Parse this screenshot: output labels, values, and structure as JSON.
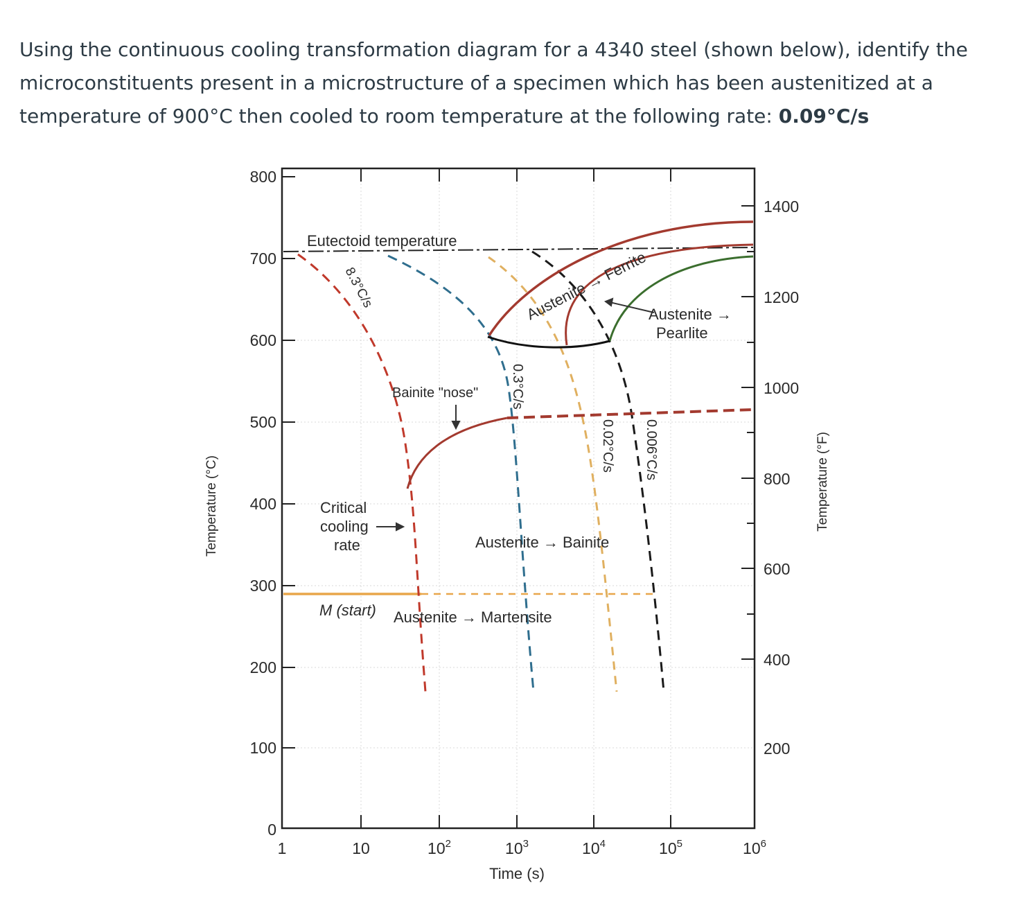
{
  "question": {
    "line1": "Using the continuous cooling transformation diagram for a 4340 steel (shown below), identify the",
    "line2": "microconstituents present in a microstructure of a specimen which has been austenitized at a",
    "line3_prefix": "temperature of 900°C then cooled to room temperature at the following rate: ",
    "rate": "0.09°C/s"
  },
  "diagram": {
    "y_left_title": "Temperature (°C)",
    "y_right_title": "Temperature (°F)",
    "x_title": "Time (s)",
    "y_left_ticks": [
      "0",
      "100",
      "200",
      "300",
      "400",
      "500",
      "600",
      "700",
      "800"
    ],
    "y_right_ticks": [
      "200",
      "400",
      "600",
      "800",
      "1000",
      "1200",
      "1400"
    ],
    "x_ticks": [
      {
        "base": "1",
        "exp": ""
      },
      {
        "base": "10",
        "exp": ""
      },
      {
        "base": "10",
        "exp": "2"
      },
      {
        "base": "10",
        "exp": "3"
      },
      {
        "base": "10",
        "exp": "4"
      },
      {
        "base": "10",
        "exp": "5"
      },
      {
        "base": "10",
        "exp": "6"
      }
    ],
    "labels": {
      "eutectoid": "Eutectoid temperature",
      "ferrite_line": "Austenite → Ferrite",
      "pearlite_1": "Austenite →",
      "pearlite_2": "Pearlite",
      "bainite_nose": "Bainite \"nose\"",
      "critical_1": "Critical",
      "critical_2": "cooling",
      "critical_3": "rate",
      "bainite_transform": "Austenite → Bainite",
      "m_start": "M (start)",
      "martensite_transform": "Austenite → Martensite"
    },
    "cooling_rates": [
      "8.3°C/s",
      "0.3°C/s",
      "0.02°C/s",
      "0.006°C/s"
    ],
    "colors": {
      "rate_8_3": "#c0392b",
      "rate_0_3": "#2f6e8e",
      "rate_0_02": "#e0b060",
      "rate_0_006": "#1a1a1a",
      "ferrite_curve": "#a33a2f",
      "pearlite_curve": "#3b6e2e",
      "ms_line": "#e8a64a"
    }
  }
}
